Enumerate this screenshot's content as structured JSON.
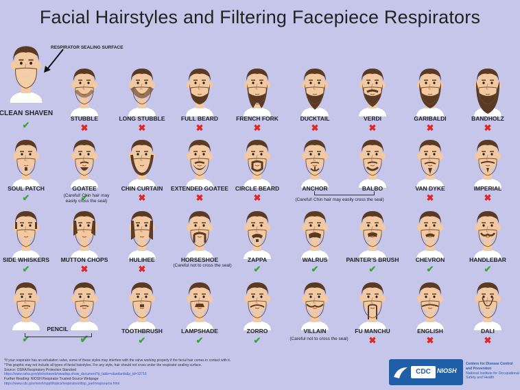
{
  "title": "Facial Hairstyles and Filtering Facepiece Respirators",
  "seal_label": "RESPIRATOR SEALING SURFACE",
  "colors": {
    "ok": "#3aa63a",
    "no": "#e02626",
    "skin": "#f2c9a0",
    "hair": "#5a3a22",
    "mask": "#f4cfa8"
  },
  "styles": [
    {
      "name": "CLEAN SHAVEN",
      "ok": true,
      "beard": "none"
    },
    {
      "name": "STUBBLE",
      "ok": false,
      "beard": "stubble"
    },
    {
      "name": "LONG STUBBLE",
      "ok": false,
      "beard": "longstubble"
    },
    {
      "name": "FULL BEARD",
      "ok": false,
      "beard": "full"
    },
    {
      "name": "FRENCH FORK",
      "ok": false,
      "beard": "fork"
    },
    {
      "name": "DUCKTAIL",
      "ok": false,
      "beard": "ducktail"
    },
    {
      "name": "VERDI",
      "ok": false,
      "beard": "verdi"
    },
    {
      "name": "GARIBALDI",
      "ok": false,
      "beard": "garibaldi"
    },
    {
      "name": "BANDHOLZ",
      "ok": false,
      "beard": "bandholz"
    },
    {
      "name": "SOUL PATCH",
      "ok": true,
      "beard": "soulpatch"
    },
    {
      "name": "GOATEE",
      "ok": true,
      "beard": "goatee"
    },
    {
      "name": "CHIN CURTAIN",
      "ok": false,
      "beard": "chincurtain"
    },
    {
      "name": "EXTENDED GOATEE",
      "ok": false,
      "beard": "extgoatee"
    },
    {
      "name": "CIRCLE BEARD",
      "ok": false,
      "beard": "circle"
    },
    {
      "name": "ANCHOR",
      "ok": null,
      "beard": "anchor"
    },
    {
      "name": "BALBO",
      "ok": null,
      "beard": "balbo"
    },
    {
      "name": "VAN DYKE",
      "ok": false,
      "beard": "vandyke"
    },
    {
      "name": "IMPERIAL",
      "ok": false,
      "beard": "imperial"
    },
    {
      "name": "SIDE WHISKERS",
      "ok": true,
      "beard": "whiskers"
    },
    {
      "name": "MUTTON CHOPS",
      "ok": false,
      "beard": "mutton"
    },
    {
      "name": "HULIHEE",
      "ok": false,
      "beard": "hulihee"
    },
    {
      "name": "HORSESHOE",
      "ok": null,
      "beard": "horseshoe"
    },
    {
      "name": "ZAPPA",
      "ok": true,
      "beard": "zappa"
    },
    {
      "name": "WALRUS",
      "ok": true,
      "beard": "walrus"
    },
    {
      "name": "PAINTER'S BRUSH",
      "ok": true,
      "beard": "brush"
    },
    {
      "name": "CHEVRON",
      "ok": true,
      "beard": "chevron"
    },
    {
      "name": "HANDLEBAR",
      "ok": true,
      "beard": "handlebar"
    },
    {
      "name": "",
      "ok": true,
      "beard": "pencil1"
    },
    {
      "name": "",
      "ok": true,
      "beard": "pencil2"
    },
    {
      "name": "TOOTHBRUSH",
      "ok": true,
      "beard": "toothbrush"
    },
    {
      "name": "LAMPSHADE",
      "ok": true,
      "beard": "lampshade"
    },
    {
      "name": "ZORRO",
      "ok": true,
      "beard": "zorro"
    },
    {
      "name": "VILLAIN",
      "ok": null,
      "beard": "villain"
    },
    {
      "name": "FU MANCHU",
      "ok": false,
      "beard": "fumanchu"
    },
    {
      "name": "ENGLISH",
      "ok": false,
      "beard": "english"
    },
    {
      "name": "DALI",
      "ok": false,
      "beard": "dali"
    }
  ],
  "notes": {
    "goatee": "(Careful! Chin hair may easily cross the seal)",
    "anchor_balbo": "(Careful! Chin hair may easily cross the seal)",
    "horseshoe": "(Careful not to cross the seal)",
    "villain": "(Careful not to cross the seal)",
    "pencil": "PENCIL"
  },
  "footer": {
    "line1": "*If your respirator has an exhalation valve, some of these styles may interfere with the valve working properly if the facial hair comes in contact with it.",
    "line2": "*This graphic may not include all types of facial hairstyles. For any style, hair should not cross under the respirator sealing surface.",
    "line3": "Source: OSHA Respiratory Protection Standard",
    "link1": "https://www.osha.gov/pls/oshaweb/owadisp.show_document?p_table=standards&p_id=12716",
    "line4": "Further Reading: NIOSH Respirator Trusted-Source Webpage",
    "link2": "https://www.cdc.gov/niosh/npptl/topics/respirators/disp_part/respsource.html"
  },
  "cdc": {
    "logo": "CDC",
    "niosh": "NIOSH",
    "org1": "Centers for Disease Control and Prevention",
    "org2": "National Institute for Occupational Safety and Health"
  }
}
